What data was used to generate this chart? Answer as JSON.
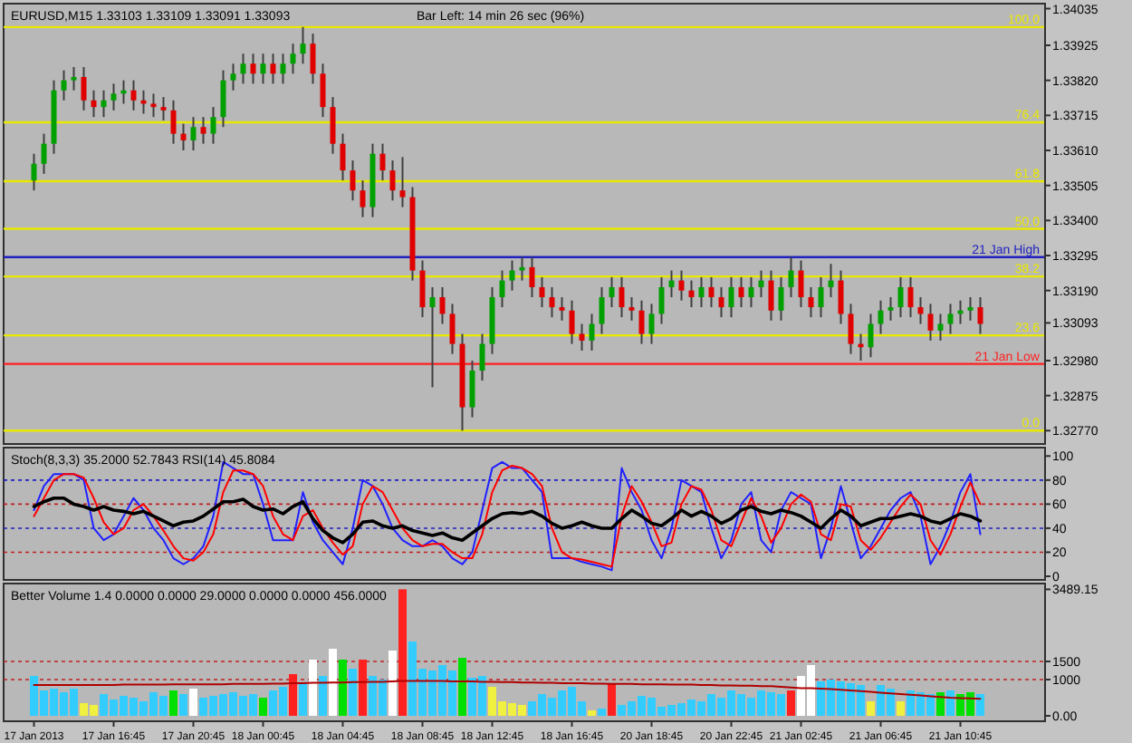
{
  "chart_data": [
    {
      "type": "candlestick",
      "title": "EURUSD,M15  1.33103 1.33109 1.33091 1.33093",
      "annotations": [
        "Bar Left: 14 min 26 sec (96%)"
      ],
      "categories": [
        null,
        null,
        null,
        null,
        null,
        null,
        null,
        null,
        null,
        null,
        null,
        null,
        null,
        null,
        null,
        null,
        null,
        null,
        null,
        null,
        null,
        null,
        null,
        null,
        null,
        null,
        null,
        null,
        null,
        null,
        null,
        null,
        null,
        null,
        null,
        null,
        null,
        null,
        null,
        null,
        null,
        null,
        null,
        null,
        null,
        null,
        null,
        null,
        null,
        null,
        null,
        null,
        null,
        null,
        null,
        null,
        null,
        null,
        null,
        null,
        null,
        null,
        null,
        null,
        null,
        null,
        null,
        null,
        null,
        null,
        null,
        null,
        null,
        null,
        null,
        null,
        null,
        null,
        null,
        null,
        null,
        null,
        null,
        null,
        null,
        null,
        null,
        null,
        null,
        null,
        null,
        null,
        null,
        null,
        null,
        null
      ],
      "ohlc": [
        [
          1.3352,
          1.336,
          1.3349,
          1.3357
        ],
        [
          1.3357,
          1.3366,
          1.3354,
          1.3363
        ],
        [
          1.3363,
          1.3382,
          1.336,
          1.3379
        ],
        [
          1.3379,
          1.3385,
          1.3376,
          1.3382
        ],
        [
          1.3382,
          1.3386,
          1.3379,
          1.3383
        ],
        [
          1.3383,
          1.3386,
          1.3373,
          1.3376
        ],
        [
          1.3376,
          1.3379,
          1.3371,
          1.3374
        ],
        [
          1.3374,
          1.3379,
          1.3371,
          1.3376
        ],
        [
          1.3376,
          1.3381,
          1.3373,
          1.3378
        ],
        [
          1.3378,
          1.3382,
          1.3375,
          1.3379
        ],
        [
          1.3379,
          1.3382,
          1.3373,
          1.3376
        ],
        [
          1.3376,
          1.3379,
          1.3372,
          1.3375
        ],
        [
          1.3375,
          1.3378,
          1.3371,
          1.3374
        ],
        [
          1.3374,
          1.3377,
          1.337,
          1.3373
        ],
        [
          1.3373,
          1.3376,
          1.3363,
          1.3366
        ],
        [
          1.3366,
          1.3369,
          1.3361,
          1.3364
        ],
        [
          1.3364,
          1.3371,
          1.3361,
          1.3368
        ],
        [
          1.3368,
          1.3371,
          1.3363,
          1.3366
        ],
        [
          1.3366,
          1.3374,
          1.3363,
          1.3371
        ],
        [
          1.3371,
          1.3385,
          1.3368,
          1.3382
        ],
        [
          1.3382,
          1.3387,
          1.3379,
          1.3384
        ],
        [
          1.3384,
          1.339,
          1.3381,
          1.3387
        ],
        [
          1.3387,
          1.339,
          1.3381,
          1.3384
        ],
        [
          1.3384,
          1.339,
          1.3381,
          1.3387
        ],
        [
          1.3387,
          1.339,
          1.3381,
          1.3384
        ],
        [
          1.3384,
          1.339,
          1.3381,
          1.3387
        ],
        [
          1.3387,
          1.3393,
          1.3384,
          1.339
        ],
        [
          1.339,
          1.3398,
          1.3387,
          1.3393
        ],
        [
          1.3393,
          1.3396,
          1.3381,
          1.3384
        ],
        [
          1.3384,
          1.3387,
          1.3371,
          1.3374
        ],
        [
          1.3374,
          1.3377,
          1.336,
          1.3363
        ],
        [
          1.3363,
          1.3366,
          1.3352,
          1.3355
        ],
        [
          1.3355,
          1.3358,
          1.3346,
          1.3349
        ],
        [
          1.3349,
          1.3352,
          1.3341,
          1.3344
        ],
        [
          1.3344,
          1.3363,
          1.3341,
          1.336
        ],
        [
          1.336,
          1.3363,
          1.3352,
          1.3355
        ],
        [
          1.3355,
          1.3358,
          1.3346,
          1.3349
        ],
        [
          1.3349,
          1.3359,
          1.3344,
          1.3347
        ],
        [
          1.3347,
          1.335,
          1.3322,
          1.3325
        ],
        [
          1.3325,
          1.3328,
          1.3311,
          1.3314
        ],
        [
          1.3314,
          1.332,
          1.329,
          1.3317
        ],
        [
          1.3317,
          1.332,
          1.3309,
          1.3312
        ],
        [
          1.3312,
          1.3315,
          1.33,
          1.3303
        ],
        [
          1.3303,
          1.3306,
          1.3277,
          1.3284
        ],
        [
          1.3284,
          1.3298,
          1.3281,
          1.3295
        ],
        [
          1.3295,
          1.3306,
          1.3292,
          1.3303
        ],
        [
          1.3303,
          1.332,
          1.33,
          1.3317
        ],
        [
          1.3317,
          1.3325,
          1.3314,
          1.3322
        ],
        [
          1.3322,
          1.3328,
          1.3319,
          1.3325
        ],
        [
          1.3325,
          1.3329,
          1.3322,
          1.3326
        ],
        [
          1.3326,
          1.3329,
          1.3317,
          1.332
        ],
        [
          1.332,
          1.3323,
          1.3314,
          1.3317
        ],
        [
          1.3317,
          1.332,
          1.3311,
          1.3314
        ],
        [
          1.3314,
          1.3317,
          1.331,
          1.3313
        ],
        [
          1.3313,
          1.3316,
          1.3303,
          1.3306
        ],
        [
          1.3306,
          1.3309,
          1.3301,
          1.3304
        ],
        [
          1.3304,
          1.3312,
          1.3301,
          1.3309
        ],
        [
          1.3309,
          1.332,
          1.3306,
          1.3317
        ],
        [
          1.3317,
          1.3323,
          1.3314,
          1.332
        ],
        [
          1.332,
          1.3323,
          1.3311,
          1.3314
        ],
        [
          1.3314,
          1.3317,
          1.331,
          1.3313
        ],
        [
          1.3313,
          1.3316,
          1.3303,
          1.3306
        ],
        [
          1.3306,
          1.3315,
          1.3303,
          1.3312
        ],
        [
          1.3312,
          1.3323,
          1.3309,
          1.332
        ],
        [
          1.332,
          1.3325,
          1.3317,
          1.3322
        ],
        [
          1.3322,
          1.3325,
          1.3316,
          1.3319
        ],
        [
          1.3319,
          1.3322,
          1.3314,
          1.3317
        ],
        [
          1.3317,
          1.3323,
          1.3314,
          1.332
        ],
        [
          1.332,
          1.3323,
          1.3314,
          1.3317
        ],
        [
          1.3317,
          1.332,
          1.3311,
          1.3314
        ],
        [
          1.3314,
          1.3323,
          1.3311,
          1.332
        ],
        [
          1.332,
          1.3323,
          1.3314,
          1.3317
        ],
        [
          1.3317,
          1.3323,
          1.3314,
          1.332
        ],
        [
          1.332,
          1.3325,
          1.3317,
          1.3322
        ],
        [
          1.3322,
          1.3325,
          1.331,
          1.3313
        ],
        [
          1.3313,
          1.3323,
          1.331,
          1.332
        ],
        [
          1.332,
          1.3329,
          1.3317,
          1.3325
        ],
        [
          1.3325,
          1.3328,
          1.3314,
          1.3317
        ],
        [
          1.3317,
          1.332,
          1.3311,
          1.3314
        ],
        [
          1.3314,
          1.3323,
          1.3311,
          1.332
        ],
        [
          1.332,
          1.3327,
          1.3317,
          1.3322
        ],
        [
          1.3322,
          1.3325,
          1.3309,
          1.3312
        ],
        [
          1.3312,
          1.3315,
          1.33,
          1.3303
        ],
        [
          1.3303,
          1.3306,
          1.3298,
          1.3302
        ],
        [
          1.3302,
          1.3312,
          1.3299,
          1.3309
        ],
        [
          1.3309,
          1.3316,
          1.3306,
          1.3313
        ],
        [
          1.3313,
          1.3317,
          1.331,
          1.3314
        ],
        [
          1.3314,
          1.3323,
          1.3311,
          1.332
        ],
        [
          1.332,
          1.3323,
          1.3311,
          1.3314
        ],
        [
          1.3314,
          1.3317,
          1.3309,
          1.3312
        ],
        [
          1.3312,
          1.3315,
          1.3304,
          1.3307
        ],
        [
          1.3307,
          1.3312,
          1.3304,
          1.3309
        ],
        [
          1.3309,
          1.3315,
          1.3306,
          1.3312
        ],
        [
          1.3312,
          1.3316,
          1.3309,
          1.3313
        ],
        [
          1.3313,
          1.3317,
          1.331,
          1.3314
        ],
        [
          1.3314,
          1.3317,
          1.3306,
          1.3309
        ]
      ],
      "ylim": [
        1.3273,
        1.3405
      ],
      "yticks": [
        1.34035,
        1.33925,
        {
          "value": 1.3382,
          "label": "1.33820"
        },
        1.33715,
        {
          "value": 1.3361,
          "label": "1.33610"
        },
        1.33505,
        {
          "value": 1.334,
          "label": "1.33400"
        },
        1.33295,
        {
          "value": 1.3319,
          "label": "1.33190"
        },
        1.33093,
        {
          "value": 1.3298,
          "label": "1.32980"
        },
        1.32875,
        {
          "value": 1.3277,
          "label": "1.32770"
        }
      ],
      "y2lim": [
        -3.3,
        105.8
      ],
      "y2ticks": [
        {
          "value": 100,
          "label": "100.0"
        },
        76.4,
        61.8,
        {
          "value": 50,
          "label": "50.0"
        },
        38.2,
        23.6,
        {
          "value": 0,
          "label": "0.0"
        }
      ],
      "ref_lines": [
        {
          "axis": "y2",
          "value": 100,
          "color": "#e8e800"
        },
        {
          "axis": "y2",
          "value": 76.4,
          "color": "#e8e800"
        },
        {
          "axis": "y2",
          "value": 61.8,
          "color": "#e8e800"
        },
        {
          "axis": "y2",
          "value": 50,
          "color": "#e8e800"
        },
        {
          "axis": "y2",
          "value": 38.2,
          "color": "#e8e800"
        },
        {
          "axis": "y2",
          "value": 23.6,
          "color": "#e8e800"
        },
        {
          "axis": "y2",
          "value": 0,
          "color": "#e8e800"
        },
        {
          "axis": "y",
          "value": 1.3329,
          "label": "21 Jan High",
          "color": "#2020c0"
        },
        {
          "axis": "y",
          "value": 1.3297,
          "label": "21 Jan Low",
          "color": "#ff2020"
        }
      ]
    },
    {
      "type": "line",
      "title": "Stoch(8,3,3) 35.2000 52.7843 RSI(14) 45.8084",
      "categories": [
        null,
        null,
        null,
        null,
        null,
        null,
        null,
        null,
        null,
        null,
        null,
        null,
        null,
        null,
        null,
        null,
        null,
        null,
        null,
        null,
        null,
        null,
        null,
        null,
        null,
        null,
        null,
        null,
        null,
        null,
        null,
        null,
        null,
        null,
        null,
        null,
        null,
        null,
        null,
        null,
        null,
        null,
        null,
        null,
        null,
        null,
        null,
        null,
        null,
        null,
        null,
        null,
        null,
        null,
        null,
        null,
        null,
        null,
        null,
        null,
        null,
        null,
        null,
        null,
        null,
        null,
        null,
        null,
        null,
        null,
        null,
        null,
        null,
        null,
        null,
        null,
        null,
        null,
        null,
        null,
        null,
        null,
        null,
        null,
        null,
        null,
        null,
        null,
        null,
        null,
        null,
        null,
        null,
        null,
        null,
        null
      ],
      "series": [
        {
          "color": "#2020ff",
          "values": [
            55,
            75,
            85,
            85,
            85,
            80,
            40,
            30,
            35,
            50,
            65,
            55,
            40,
            30,
            15,
            10,
            15,
            25,
            50,
            95,
            90,
            85,
            85,
            60,
            30,
            30,
            30,
            70,
            45,
            30,
            20,
            10,
            40,
            80,
            75,
            60,
            40,
            30,
            25,
            25,
            30,
            25,
            15,
            10,
            20,
            55,
            90,
            95,
            90,
            90,
            80,
            70,
            15,
            15,
            15,
            12,
            10,
            8,
            5,
            90,
            70,
            55,
            30,
            15,
            40,
            80,
            75,
            70,
            40,
            15,
            30,
            60,
            70,
            30,
            20,
            55,
            70,
            65,
            60,
            15,
            40,
            75,
            45,
            15,
            25,
            40,
            55,
            65,
            70,
            50,
            10,
            25,
            45,
            70,
            85,
            35
          ]
        },
        {
          "color": "#ff0000",
          "values": [
            50,
            65,
            80,
            85,
            85,
            82,
            65,
            45,
            35,
            40,
            55,
            60,
            50,
            38,
            25,
            15,
            13,
            20,
            35,
            70,
            88,
            88,
            85,
            75,
            50,
            35,
            30,
            50,
            55,
            40,
            28,
            18,
            25,
            60,
            75,
            70,
            55,
            40,
            30,
            25,
            27,
            27,
            20,
            15,
            15,
            35,
            70,
            88,
            92,
            90,
            85,
            75,
            40,
            20,
            15,
            14,
            12,
            10,
            8,
            50,
            75,
            62,
            45,
            25,
            28,
            60,
            75,
            72,
            55,
            30,
            25,
            45,
            65,
            50,
            28,
            40,
            60,
            68,
            62,
            35,
            30,
            60,
            58,
            30,
            22,
            32,
            45,
            58,
            68,
            60,
            30,
            18,
            35,
            58,
            78,
            60
          ]
        },
        {
          "color": "#000000",
          "values": [
            58,
            62,
            65,
            65,
            60,
            58,
            55,
            58,
            55,
            54,
            52,
            54,
            50,
            46,
            42,
            45,
            46,
            50,
            56,
            62,
            62,
            64,
            58,
            55,
            56,
            52,
            58,
            62,
            48,
            38,
            32,
            28,
            35,
            45,
            46,
            42,
            40,
            42,
            38,
            36,
            34,
            36,
            32,
            30,
            36,
            42,
            48,
            52,
            53,
            52,
            54,
            50,
            44,
            40,
            42,
            45,
            42,
            40,
            40,
            48,
            55,
            50,
            44,
            42,
            48,
            55,
            50,
            54,
            50,
            44,
            48,
            55,
            58,
            54,
            52,
            55,
            53,
            50,
            45,
            40,
            48,
            55,
            50,
            42,
            45,
            48,
            48,
            50,
            52,
            50,
            46,
            44,
            48,
            52,
            50,
            46
          ]
        }
      ],
      "ylim": [
        -3,
        107
      ],
      "yticks": [
        0,
        20,
        40,
        60,
        80,
        100
      ],
      "ref_lines": [
        {
          "axis": "y",
          "value": 20,
          "color": "#c02020",
          "line_style": "dashed"
        },
        {
          "axis": "y",
          "value": 40,
          "color": "#2020c0",
          "line_style": "dashed"
        },
        {
          "axis": "y",
          "value": 60,
          "color": "#c02020",
          "line_style": "dashed"
        },
        {
          "axis": "y",
          "value": 80,
          "color": "#2020c0",
          "line_style": "dashed"
        }
      ]
    },
    {
      "type": "bar",
      "title": "Better Volume 1.4 0.0000 0.0000 29.0000 0.0000 0.0000 456.0000",
      "categories": [
        "17 Jan 2013",
        null,
        null,
        null,
        null,
        null,
        null,
        null,
        "17 Jan 16:45",
        null,
        null,
        null,
        null,
        null,
        null,
        null,
        "17 Jan 20:45",
        null,
        null,
        null,
        null,
        null,
        null,
        "18 Jan 00:45",
        null,
        null,
        null,
        null,
        null,
        null,
        null,
        "18 Jan 04:45",
        null,
        null,
        null,
        null,
        null,
        null,
        null,
        "18 Jan 08:45",
        null,
        null,
        null,
        null,
        null,
        null,
        "18 Jan 12:45",
        null,
        null,
        null,
        null,
        null,
        null,
        null,
        "18 Jan 16:45",
        null,
        null,
        null,
        null,
        null,
        null,
        null,
        "20 Jan 18:45",
        null,
        null,
        null,
        null,
        null,
        null,
        null,
        "20 Jan 22:45",
        null,
        null,
        null,
        null,
        null,
        null,
        "21 Jan 02:45",
        null,
        null,
        null,
        null,
        null,
        null,
        null,
        "21 Jan 06:45",
        null,
        null,
        null,
        null,
        null,
        null,
        null,
        "21 Jan 10:45",
        null,
        null
      ],
      "series": [
        {
          "values": [
            1100,
            700,
            750,
            650,
            750,
            350,
            300,
            600,
            450,
            550,
            500,
            400,
            650,
            550,
            700,
            600,
            750,
            500,
            550,
            600,
            650,
            550,
            600,
            500,
            700,
            800,
            1150,
            900,
            1550,
            1100,
            1850,
            1550,
            1300,
            1550,
            1100,
            1000,
            1800,
            3490,
            2050,
            1300,
            1250,
            1400,
            1250,
            1600,
            1050,
            1100,
            800,
            400,
            350,
            300,
            400,
            600,
            500,
            700,
            800,
            400,
            150,
            200,
            900,
            300,
            400,
            550,
            500,
            250,
            300,
            350,
            450,
            400,
            600,
            500,
            700,
            600,
            500,
            700,
            650,
            600,
            700,
            1100,
            1400,
            950,
            1000,
            950,
            900,
            850,
            400,
            850,
            750,
            400,
            700,
            650,
            600,
            650,
            700,
            600,
            650,
            600
          ],
          "colors": [
            "#33ccff",
            "#33ccff",
            "#33ccff",
            "#33ccff",
            "#33ccff",
            "#f0f040",
            "#f0f040",
            "#33ccff",
            "#33ccff",
            "#33ccff",
            "#33ccff",
            "#33ccff",
            "#33ccff",
            "#33ccff",
            "#00e000",
            "#33ccff",
            "#ffffff",
            "#33ccff",
            "#33ccff",
            "#33ccff",
            "#33ccff",
            "#33ccff",
            "#33ccff",
            "#00e000",
            "#33ccff",
            "#33ccff",
            "#ff2020",
            "#33ccff",
            "#ffffff",
            "#33ccff",
            "#ffffff",
            "#00e000",
            "#33ccff",
            "#ff2020",
            "#33ccff",
            "#33ccff",
            "#ffffff",
            "#ff2020",
            "#33ccff",
            "#33ccff",
            "#33ccff",
            "#33ccff",
            "#33ccff",
            "#00e000",
            "#33ccff",
            "#33ccff",
            "#f0f040",
            "#f0f040",
            "#f0f040",
            "#f0f040",
            "#33ccff",
            "#33ccff",
            "#33ccff",
            "#33ccff",
            "#33ccff",
            "#33ccff",
            "#f0f040",
            "#33ccff",
            "#ff2020",
            "#33ccff",
            "#33ccff",
            "#33ccff",
            "#33ccff",
            "#33ccff",
            "#33ccff",
            "#33ccff",
            "#33ccff",
            "#33ccff",
            "#33ccff",
            "#33ccff",
            "#33ccff",
            "#33ccff",
            "#33ccff",
            "#33ccff",
            "#33ccff",
            "#33ccff",
            "#ff2020",
            "#ffffff",
            "#ffffff",
            "#33ccff",
            "#33ccff",
            "#33ccff",
            "#33ccff",
            "#33ccff",
            "#f0f040",
            "#33ccff",
            "#33ccff",
            "#f0f040",
            "#33ccff",
            "#33ccff",
            "#33ccff",
            "#00e000",
            "#33ccff",
            "#00e000",
            "#00e000",
            "#33ccff"
          ]
        },
        {
          "type": "line",
          "color": "#b00000",
          "values": [
            850,
            850,
            850,
            850,
            850,
            850,
            850,
            850,
            850,
            860,
            860,
            860,
            860,
            860,
            870,
            870,
            870,
            870,
            870,
            870,
            880,
            880,
            880,
            880,
            890,
            890,
            900,
            900,
            910,
            910,
            920,
            920,
            930,
            930,
            940,
            940,
            950,
            960,
            960,
            960,
            960,
            960,
            950,
            950,
            950,
            940,
            940,
            930,
            930,
            920,
            920,
            910,
            910,
            900,
            900,
            900,
            890,
            890,
            880,
            880,
            880,
            870,
            870,
            870,
            860,
            860,
            860,
            850,
            850,
            840,
            840,
            830,
            830,
            820,
            820,
            800,
            780,
            760,
            760,
            750,
            740,
            720,
            700,
            680,
            660,
            640,
            620,
            600,
            580,
            560,
            540,
            520,
            500,
            490,
            480,
            470
          ]
        }
      ],
      "ylim": [
        -150,
        3650
      ],
      "yticks": [
        3489.15,
        1500,
        1000,
        {
          "value": 0,
          "label": "0.00"
        }
      ],
      "ref_lines": [
        {
          "axis": "y",
          "value": 1500,
          "color": "#c02020",
          "line_style": "dashed"
        },
        {
          "axis": "y",
          "value": 1000,
          "color": "#c02020",
          "line_style": "dashed"
        }
      ]
    }
  ]
}
